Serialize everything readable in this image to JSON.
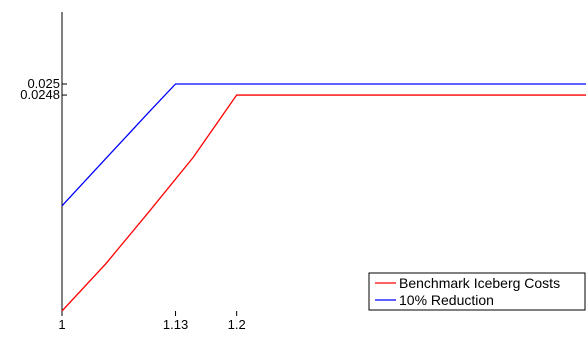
{
  "chart_data": {
    "type": "line",
    "title": "",
    "xlabel": "",
    "ylabel": "",
    "xlim": [
      1,
      1.6
    ],
    "ylim": [
      0.0209,
      0.0263
    ],
    "x_ticks": [
      {
        "value": 1,
        "label": "1"
      },
      {
        "value": 1.13,
        "label": "1.13"
      },
      {
        "value": 1.2,
        "label": "1.2"
      }
    ],
    "y_ticks": [
      {
        "value": 0.025,
        "label": "0.025"
      },
      {
        "value": 0.0248,
        "label": "0.0248"
      }
    ],
    "series": [
      {
        "name": "Benchmark Iceberg Costs",
        "color": "#ff0000",
        "points": [
          [
            1.0,
            0.0209
          ],
          [
            1.05,
            0.02175
          ],
          [
            1.1,
            0.0227
          ],
          [
            1.15,
            0.02367
          ],
          [
            1.2,
            0.0248
          ],
          [
            1.6,
            0.0248
          ]
        ]
      },
      {
        "name": "10% Reduction",
        "color": "#0000ff",
        "points": [
          [
            1.0,
            0.0228
          ],
          [
            1.05,
            0.02365
          ],
          [
            1.1,
            0.0245
          ],
          [
            1.13,
            0.025
          ],
          [
            1.6,
            0.025
          ]
        ]
      }
    ],
    "legend_position": "bottom-right",
    "grid": false
  }
}
